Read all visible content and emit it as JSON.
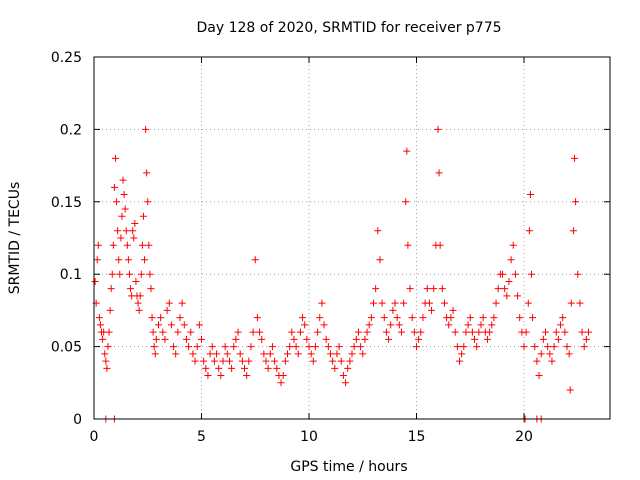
{
  "chart_data": {
    "type": "scatter",
    "title": "Day 128 of 2020, SRMTID for receiver p775",
    "xlabel": "GPS time / hours",
    "ylabel": "SRMTID / TECUs",
    "xlim": [
      0,
      24
    ],
    "ylim": [
      0,
      0.25
    ],
    "x_ticks": [
      0,
      5,
      10,
      15,
      20
    ],
    "x_tick_labels": [
      "0",
      "5",
      "10",
      "15",
      "20"
    ],
    "y_ticks": [
      0,
      0.05,
      0.1,
      0.15,
      0.2,
      0.25
    ],
    "y_tick_labels": [
      "0",
      "0.05",
      "0.1",
      "0.15",
      "0.2",
      "0.25"
    ],
    "grid": true,
    "marker": "+",
    "series_color": "#ff0000",
    "series": [
      {
        "name": "p775",
        "points": [
          [
            0.05,
            0.095
          ],
          [
            0.1,
            0.08
          ],
          [
            0.15,
            0.11
          ],
          [
            0.2,
            0.12
          ],
          [
            0.25,
            0.07
          ],
          [
            0.3,
            0.065
          ],
          [
            0.35,
            0.06
          ],
          [
            0.4,
            0.055
          ],
          [
            0.45,
            0.06
          ],
          [
            0.5,
            0.045
          ],
          [
            0.55,
            0.04
          ],
          [
            0.6,
            0.035
          ],
          [
            0.65,
            0.05
          ],
          [
            0.7,
            0.06
          ],
          [
            0.75,
            0.075
          ],
          [
            0.8,
            0.09
          ],
          [
            0.85,
            0.1
          ],
          [
            0.9,
            0.12
          ],
          [
            0.95,
            0.16
          ],
          [
            1.0,
            0.18
          ],
          [
            1.05,
            0.15
          ],
          [
            1.1,
            0.13
          ],
          [
            1.15,
            0.11
          ],
          [
            1.2,
            0.1
          ],
          [
            1.25,
            0.125
          ],
          [
            1.3,
            0.14
          ],
          [
            1.35,
            0.165
          ],
          [
            1.4,
            0.155
          ],
          [
            1.45,
            0.145
          ],
          [
            1.5,
            0.13
          ],
          [
            1.55,
            0.12
          ],
          [
            1.6,
            0.11
          ],
          [
            1.65,
            0.1
          ],
          [
            1.7,
            0.09
          ],
          [
            1.75,
            0.085
          ],
          [
            1.8,
            0.13
          ],
          [
            1.85,
            0.125
          ],
          [
            1.9,
            0.135
          ],
          [
            1.95,
            0.095
          ],
          [
            2.0,
            0.085
          ],
          [
            2.05,
            0.08
          ],
          [
            2.1,
            0.075
          ],
          [
            2.15,
            0.085
          ],
          [
            2.2,
            0.1
          ],
          [
            2.25,
            0.12
          ],
          [
            2.3,
            0.14
          ],
          [
            2.35,
            0.11
          ],
          [
            2.4,
            0.2
          ],
          [
            2.45,
            0.17
          ],
          [
            2.5,
            0.15
          ],
          [
            2.55,
            0.12
          ],
          [
            2.6,
            0.1
          ],
          [
            2.65,
            0.09
          ],
          [
            2.7,
            0.07
          ],
          [
            2.75,
            0.06
          ],
          [
            2.8,
            0.05
          ],
          [
            2.85,
            0.045
          ],
          [
            2.9,
            0.055
          ],
          [
            3.0,
            0.065
          ],
          [
            3.1,
            0.07
          ],
          [
            3.2,
            0.06
          ],
          [
            3.3,
            0.055
          ],
          [
            3.4,
            0.075
          ],
          [
            3.5,
            0.08
          ],
          [
            3.6,
            0.065
          ],
          [
            3.7,
            0.05
          ],
          [
            3.8,
            0.045
          ],
          [
            3.9,
            0.06
          ],
          [
            4.0,
            0.07
          ],
          [
            4.1,
            0.08
          ],
          [
            4.2,
            0.065
          ],
          [
            4.3,
            0.055
          ],
          [
            4.4,
            0.05
          ],
          [
            4.5,
            0.06
          ],
          [
            4.6,
            0.045
          ],
          [
            4.7,
            0.04
          ],
          [
            4.8,
            0.05
          ],
          [
            4.9,
            0.065
          ],
          [
            5.0,
            0.055
          ],
          [
            5.1,
            0.04
          ],
          [
            5.2,
            0.035
          ],
          [
            5.3,
            0.03
          ],
          [
            5.4,
            0.045
          ],
          [
            5.5,
            0.05
          ],
          [
            5.6,
            0.04
          ],
          [
            5.7,
            0.045
          ],
          [
            5.8,
            0.035
          ],
          [
            5.9,
            0.03
          ],
          [
            6.0,
            0.04
          ],
          [
            6.1,
            0.05
          ],
          [
            6.2,
            0.045
          ],
          [
            6.3,
            0.04
          ],
          [
            6.4,
            0.035
          ],
          [
            6.5,
            0.05
          ],
          [
            6.6,
            0.055
          ],
          [
            6.7,
            0.06
          ],
          [
            6.8,
            0.045
          ],
          [
            6.9,
            0.04
          ],
          [
            7.0,
            0.035
          ],
          [
            7.1,
            0.03
          ],
          [
            7.2,
            0.04
          ],
          [
            7.3,
            0.05
          ],
          [
            7.4,
            0.06
          ],
          [
            7.5,
            0.11
          ],
          [
            7.6,
            0.07
          ],
          [
            7.7,
            0.06
          ],
          [
            7.8,
            0.055
          ],
          [
            7.9,
            0.045
          ],
          [
            8.0,
            0.04
          ],
          [
            8.1,
            0.035
          ],
          [
            8.2,
            0.045
          ],
          [
            8.3,
            0.05
          ],
          [
            8.4,
            0.04
          ],
          [
            8.5,
            0.035
          ],
          [
            8.6,
            0.03
          ],
          [
            8.7,
            0.025
          ],
          [
            8.8,
            0.03
          ],
          [
            8.9,
            0.04
          ],
          [
            9.0,
            0.045
          ],
          [
            9.1,
            0.05
          ],
          [
            9.2,
            0.06
          ],
          [
            9.3,
            0.055
          ],
          [
            9.4,
            0.05
          ],
          [
            9.5,
            0.045
          ],
          [
            9.6,
            0.06
          ],
          [
            9.7,
            0.07
          ],
          [
            9.8,
            0.065
          ],
          [
            9.9,
            0.055
          ],
          [
            10.0,
            0.05
          ],
          [
            10.1,
            0.045
          ],
          [
            10.2,
            0.04
          ],
          [
            10.3,
            0.05
          ],
          [
            10.4,
            0.06
          ],
          [
            10.5,
            0.07
          ],
          [
            10.6,
            0.08
          ],
          [
            10.7,
            0.065
          ],
          [
            10.8,
            0.055
          ],
          [
            10.9,
            0.05
          ],
          [
            11.0,
            0.045
          ],
          [
            11.1,
            0.04
          ],
          [
            11.2,
            0.035
          ],
          [
            11.3,
            0.045
          ],
          [
            11.4,
            0.05
          ],
          [
            11.5,
            0.04
          ],
          [
            11.6,
            0.03
          ],
          [
            11.7,
            0.025
          ],
          [
            11.8,
            0.035
          ],
          [
            11.9,
            0.04
          ],
          [
            12.0,
            0.045
          ],
          [
            12.1,
            0.05
          ],
          [
            12.2,
            0.055
          ],
          [
            12.3,
            0.06
          ],
          [
            12.4,
            0.05
          ],
          [
            12.5,
            0.045
          ],
          [
            12.6,
            0.055
          ],
          [
            12.7,
            0.06
          ],
          [
            12.8,
            0.065
          ],
          [
            12.9,
            0.07
          ],
          [
            13.0,
            0.08
          ],
          [
            13.1,
            0.09
          ],
          [
            13.2,
            0.13
          ],
          [
            13.3,
            0.11
          ],
          [
            13.4,
            0.08
          ],
          [
            13.5,
            0.07
          ],
          [
            13.6,
            0.06
          ],
          [
            13.7,
            0.055
          ],
          [
            13.8,
            0.065
          ],
          [
            13.9,
            0.075
          ],
          [
            14.0,
            0.08
          ],
          [
            14.1,
            0.07
          ],
          [
            14.2,
            0.065
          ],
          [
            14.3,
            0.06
          ],
          [
            14.4,
            0.08
          ],
          [
            14.5,
            0.15
          ],
          [
            14.55,
            0.185
          ],
          [
            14.6,
            0.12
          ],
          [
            14.7,
            0.09
          ],
          [
            14.8,
            0.07
          ],
          [
            14.9,
            0.06
          ],
          [
            15.0,
            0.05
          ],
          [
            15.1,
            0.055
          ],
          [
            15.2,
            0.06
          ],
          [
            15.3,
            0.07
          ],
          [
            15.4,
            0.08
          ],
          [
            15.5,
            0.09
          ],
          [
            15.6,
            0.08
          ],
          [
            15.7,
            0.075
          ],
          [
            15.8,
            0.09
          ],
          [
            15.9,
            0.12
          ],
          [
            16.0,
            0.2
          ],
          [
            16.05,
            0.17
          ],
          [
            16.1,
            0.12
          ],
          [
            16.2,
            0.09
          ],
          [
            16.3,
            0.08
          ],
          [
            16.4,
            0.07
          ],
          [
            16.5,
            0.065
          ],
          [
            16.6,
            0.07
          ],
          [
            16.7,
            0.075
          ],
          [
            16.8,
            0.06
          ],
          [
            16.9,
            0.05
          ],
          [
            17.0,
            0.04
          ],
          [
            17.1,
            0.045
          ],
          [
            17.2,
            0.05
          ],
          [
            17.3,
            0.06
          ],
          [
            17.4,
            0.065
          ],
          [
            17.5,
            0.07
          ],
          [
            17.6,
            0.06
          ],
          [
            17.7,
            0.055
          ],
          [
            17.8,
            0.05
          ],
          [
            17.9,
            0.06
          ],
          [
            18.0,
            0.065
          ],
          [
            18.1,
            0.07
          ],
          [
            18.2,
            0.06
          ],
          [
            18.3,
            0.055
          ],
          [
            18.4,
            0.06
          ],
          [
            18.5,
            0.065
          ],
          [
            18.6,
            0.07
          ],
          [
            18.7,
            0.08
          ],
          [
            18.8,
            0.09
          ],
          [
            18.9,
            0.1
          ],
          [
            19.0,
            0.1
          ],
          [
            19.1,
            0.09
          ],
          [
            19.2,
            0.085
          ],
          [
            19.3,
            0.095
          ],
          [
            19.4,
            0.11
          ],
          [
            19.5,
            0.12
          ],
          [
            19.6,
            0.1
          ],
          [
            19.7,
            0.085
          ],
          [
            19.8,
            0.07
          ],
          [
            19.9,
            0.06
          ],
          [
            20.0,
            0.05
          ],
          [
            20.1,
            0.06
          ],
          [
            20.2,
            0.08
          ],
          [
            20.25,
            0.13
          ],
          [
            20.3,
            0.155
          ],
          [
            20.35,
            0.1
          ],
          [
            20.4,
            0.07
          ],
          [
            20.5,
            0.05
          ],
          [
            20.6,
            0.04
          ],
          [
            20.7,
            0.03
          ],
          [
            20.8,
            0.045
          ],
          [
            20.9,
            0.055
          ],
          [
            21.0,
            0.06
          ],
          [
            21.1,
            0.05
          ],
          [
            21.2,
            0.045
          ],
          [
            21.3,
            0.04
          ],
          [
            21.4,
            0.05
          ],
          [
            21.5,
            0.06
          ],
          [
            21.6,
            0.055
          ],
          [
            21.7,
            0.065
          ],
          [
            21.8,
            0.07
          ],
          [
            21.9,
            0.06
          ],
          [
            22.0,
            0.05
          ],
          [
            22.1,
            0.045
          ],
          [
            22.15,
            0.02
          ],
          [
            22.2,
            0.08
          ],
          [
            22.3,
            0.13
          ],
          [
            22.35,
            0.18
          ],
          [
            22.4,
            0.15
          ],
          [
            22.5,
            0.1
          ],
          [
            22.6,
            0.08
          ],
          [
            22.7,
            0.06
          ],
          [
            22.8,
            0.05
          ],
          [
            22.9,
            0.055
          ],
          [
            23.0,
            0.06
          ],
          [
            0.55,
            0.0
          ],
          [
            0.95,
            0.0
          ],
          [
            20.0,
            0.0
          ],
          [
            20.05,
            0.0
          ],
          [
            20.6,
            0.0
          ],
          [
            20.8,
            0.0
          ]
        ]
      }
    ]
  }
}
